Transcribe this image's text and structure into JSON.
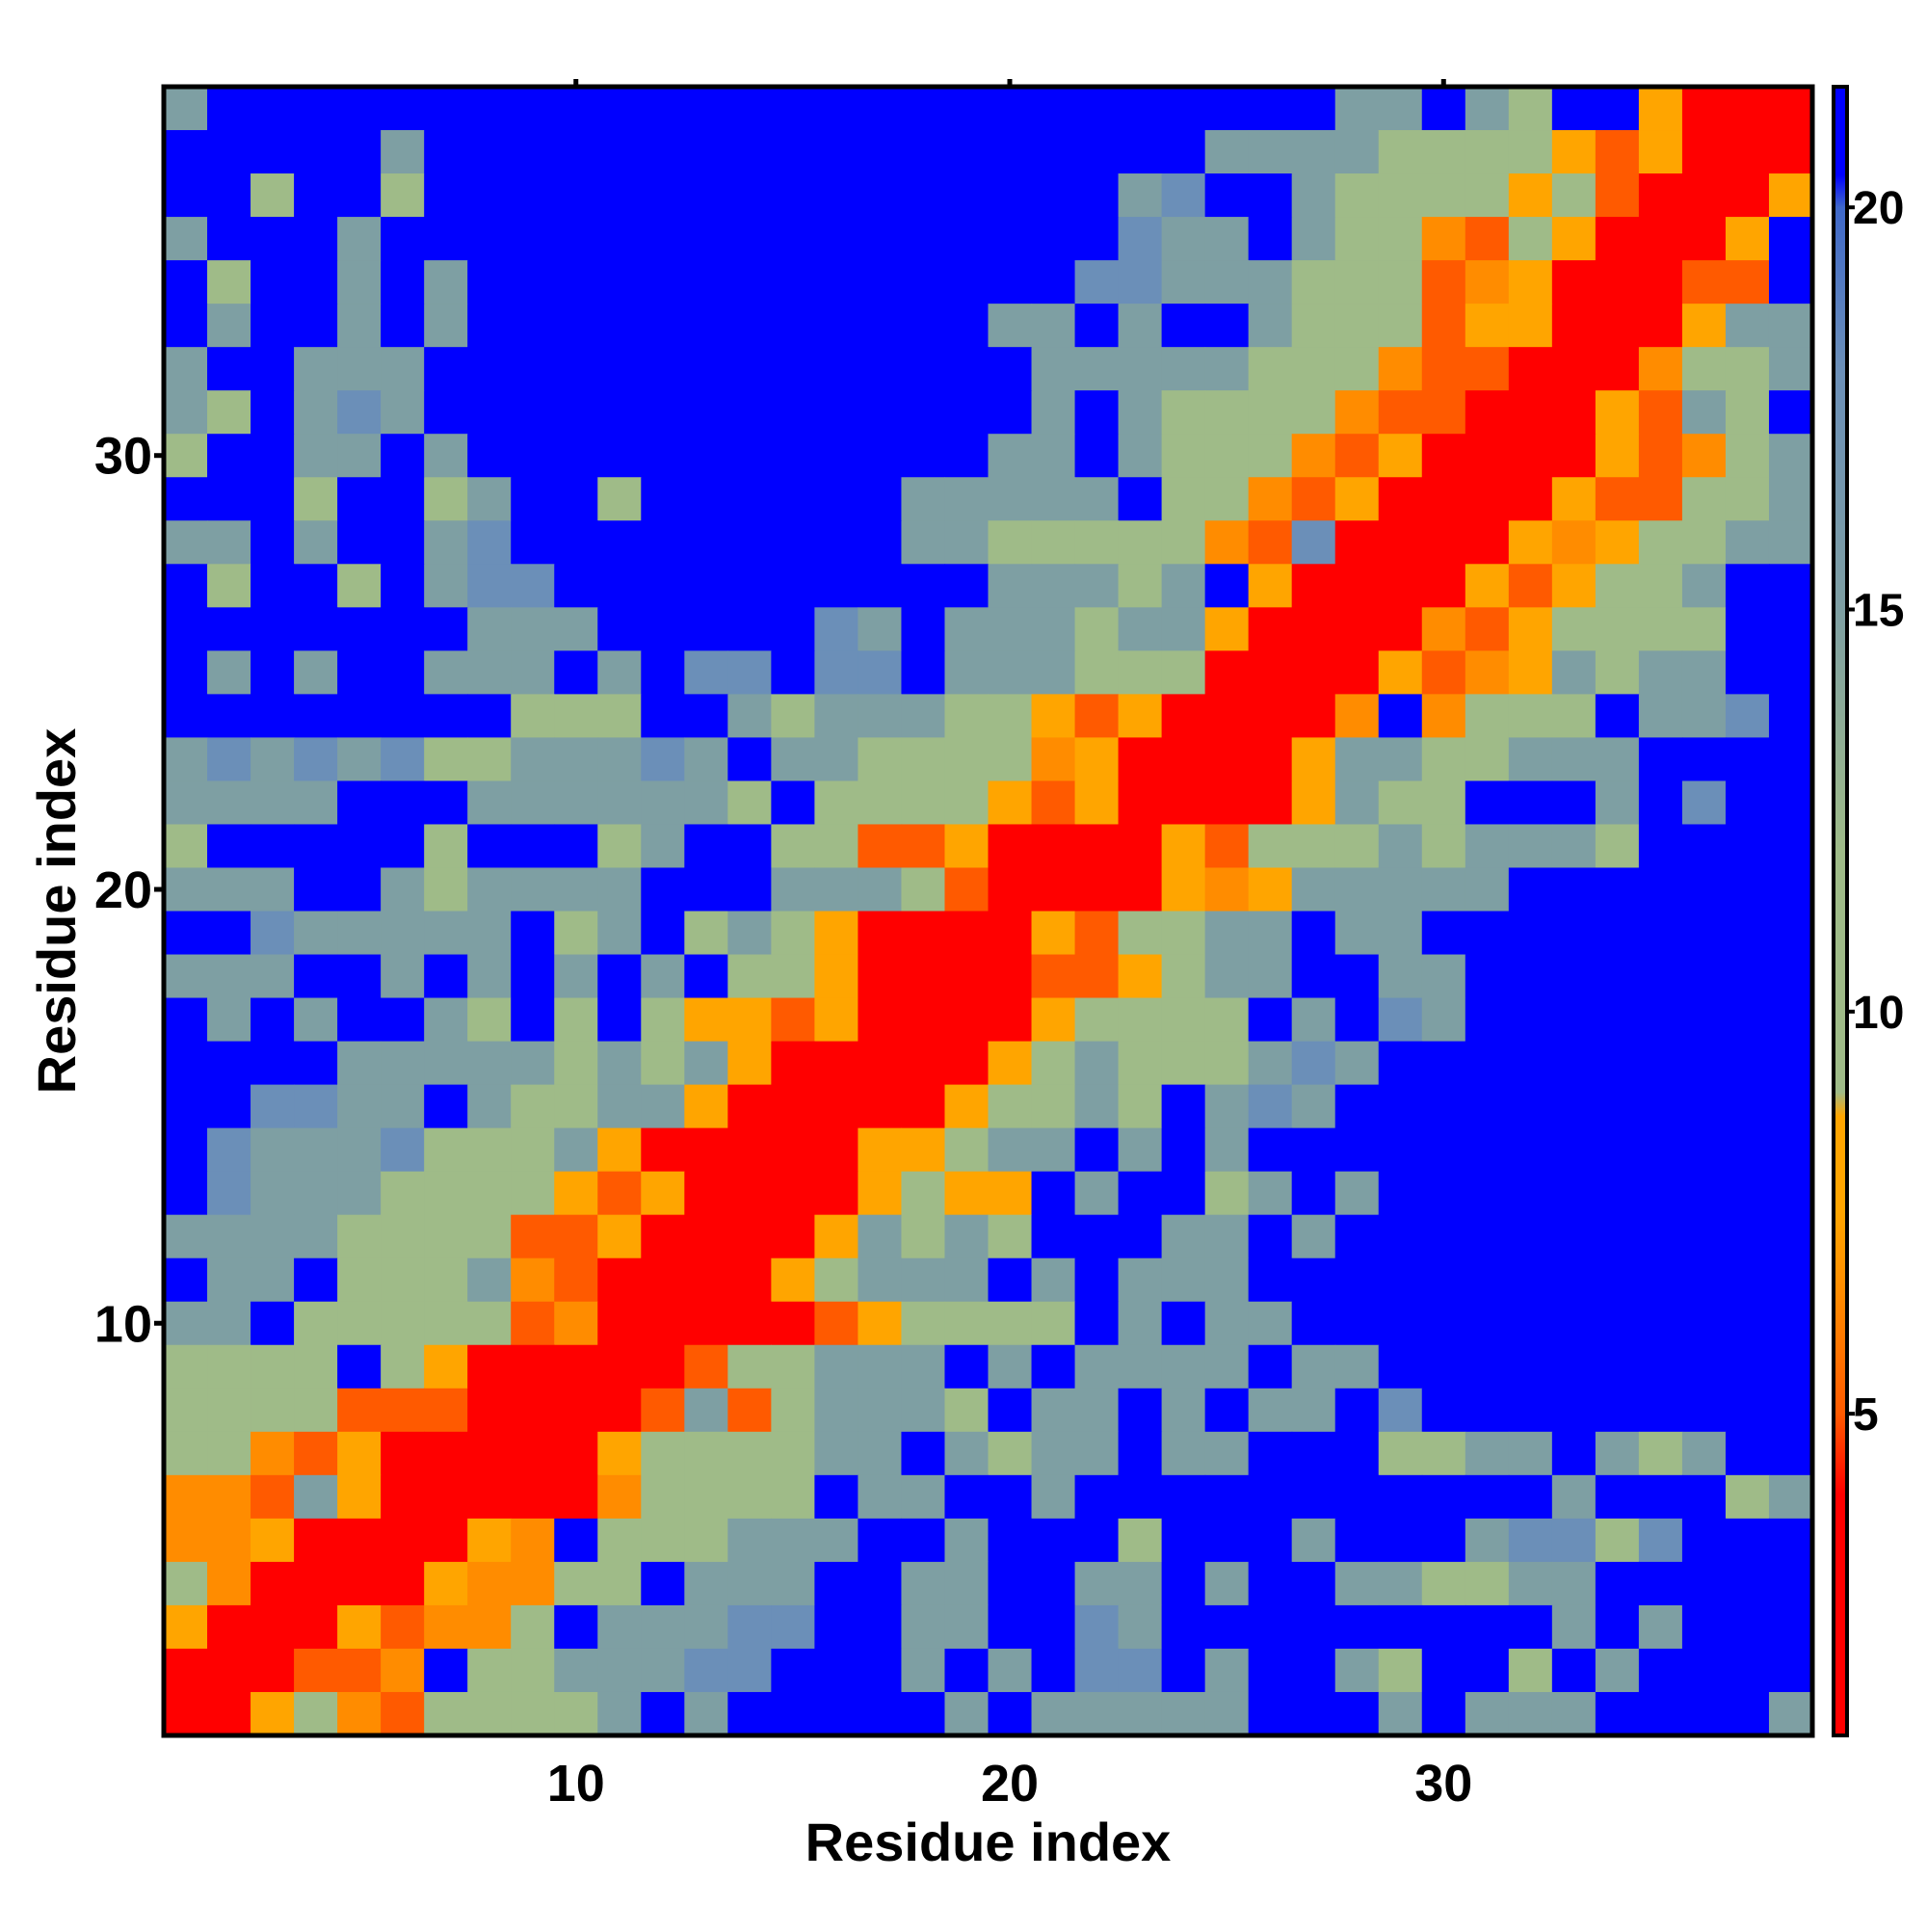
{
  "chart_data": {
    "type": "heatmap",
    "title": "",
    "xlabel": "Residue index",
    "ylabel": "Residue index",
    "n": 38,
    "x_ticks": [
      10,
      20,
      30
    ],
    "y_ticks": [
      10,
      20,
      30
    ],
    "colorbar": {
      "ticks": [
        5,
        10,
        15,
        20
      ],
      "range": [
        1,
        21.5
      ],
      "stops": [
        {
          "value": 1.0,
          "color": "#ff0000"
        },
        {
          "value": 4.0,
          "color": "#ff0000"
        },
        {
          "value": 5.0,
          "color": "#ff5a00"
        },
        {
          "value": 6.5,
          "color": "#ff8c00"
        },
        {
          "value": 7.5,
          "color": "#ffa500"
        },
        {
          "value": 8.7,
          "color": "#ffa500"
        },
        {
          "value": 9.0,
          "color": "#9fbb88"
        },
        {
          "value": 12.0,
          "color": "#9fbb88"
        },
        {
          "value": 15.0,
          "color": "#7e9fa3"
        },
        {
          "value": 18.0,
          "color": "#6b8fb8"
        },
        {
          "value": 20.0,
          "color": "#3f68c9"
        },
        {
          "value": 20.4,
          "color": "#0000ff"
        },
        {
          "value": 21.5,
          "color": "#0000ff"
        }
      ]
    },
    "color_classes": {
      "R": "#ff0000",
      "r": "#ff5a00",
      "o": "#ff8c00",
      "y": "#ffa500",
      "g": "#9fbb88",
      "s": "#7e9fa3",
      "t": "#6b8fb8",
      "b": "#0000ff"
    },
    "rows_top_to_bottom": [
      "sbbbbbbbbbbbbbbbbbbbbbbbbbbssbsgbbyRRR",
      "bbbbbsbbbbbbbbbbbbbbbbbbssssggggyryRRR",
      "bbgbbgbbbbbbbbbbbbbbbbstbbsggggygrRRRy",
      "sbbbsbbbbbbbbbbbbbbbbbtssbsggorgyRRRyb",
      "bgbbsbsbbbbbbbbbbbbbbttsssgggroyRRRrrb",
      "bsbbsbsbbbbbbbbbbbbssbsbbsgggryyRRRyss",
      "sbbsssbbbbbbbbbbbbbbsssssgggorrRRRoggs",
      "sgbstsbbbbbbbbbbbbbbsbsggggorrRRRyrsgb",
      "gbbssbsbbbbbbbbbbbbssbsgggoryRRRRyrogs",
      "bbbgbbgsbbgbbbbbbsssssbggoryRRRRyrrggs",
      "ssbsbbstbbbbbbbbbssgggggortRRRRyoyggss",
      "bgbbgbsttbbbbbbbbbbsssgsbyRRRRyryggsbb",
      "bbbbbbbsssbbbbbtsbsssgssyRRRRoryggggbb",
      "bsbsbbsssbsbttbttbsssgggRRRRyroysgssbb",
      "bbbbbbbbgggbbsgsssggyryRRRRobogggbsstb",
      "stststggssstsbssggggoyRRRRyssggsssbbbb",
      "ssssbbbssssssgbggggyryRRRRysggbbbsbtbb",
      "gbbbbbgbbbgsbbggrryRRRRyrgggsgsssgbbbb",
      "sssbbsgssssbbbsssgrRRRRyoysssssbbbbbbb",
      "bbtsssssbgsbgsgyRRRRyrggssbssbbbbbbbbb",
      "sssbbsbsbsbsbggyRRRRrrygssbbssbbbbbbbb",
      "bsbsbbsgbgbgyyryRRRRyggggbsbtsbbbbbbbb",
      "bbbbsssssgsgsyRRRRRygsgggstsbbbbbbbbbb",
      "bbttssbsggssyRRRRRyggsgbstsbbbbbbbbbbb",
      "btssstgggsyRRRRRyygssbsbsbbbbbbbbbbbbb",
      "btsssggggyryRRRRygyybsbbgsbsbbbbbbbbbb",
      "ssssggggrryRRRRysgsgbbbssbsbbbbbbbbbbb",
      "bssbgggsorRRRRygsssbsbsssbbbbbbbbbbbbb",
      "ssbgggggroRRRRRryggggbsbssbbbbbbbbbbbb",
      "ggggbgyRRRRRrggsssbsbssssbssbbbbbbbbbb",
      "ggggrrrRRRRrsrgsssgbssbsbssbtbbbbbbbbb",
      "ggoryRRRRRyggggssbsgssbssbbbggssbsgsbb",
      "oorsyRRRRRoggggbssbbsbbbbbbbbbbbsbbbgs",
      "ooyRRRRyobgggsssbbsbbbgbbbsbbbsttgtbbb",
      "goRRRRyooggbsssbbssbbssbsbbssggssbbbbb",
      "yRRRyroogbsssttbbssbbtsbbbbbbbbbsbsbbb",
      "RRRrrobggsssttbbbsbsbttbsbbsgbbgbsbbbb",
      "RRygorggggsbsbbbbbsbsssssbbbsbsssbbbbs"
    ]
  }
}
